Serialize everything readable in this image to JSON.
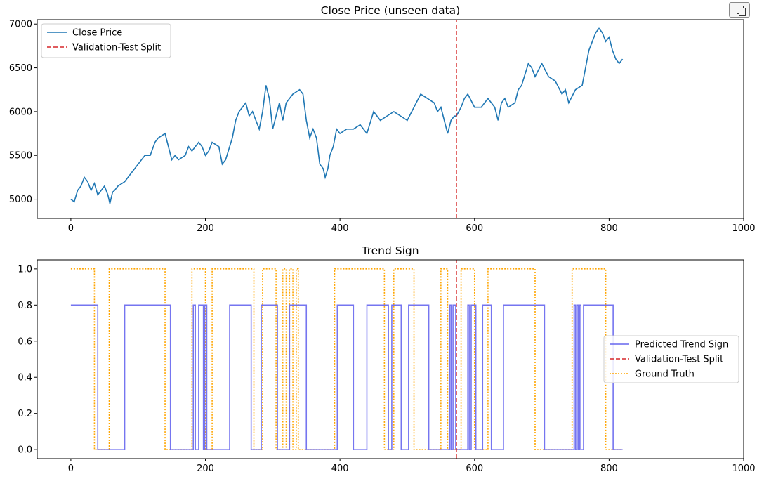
{
  "toolbar": {
    "copy_icon": "copy-icon"
  },
  "colors": {
    "close_price": "#1f77b4",
    "split": "#d62728",
    "predicted": "#6666ee",
    "ground_truth": "#ffa500",
    "axes": "#000000"
  },
  "chart_data": [
    {
      "type": "line",
      "title": "Close Price (unseen data)",
      "xlabel": "",
      "ylabel": "",
      "xlim": [
        -50,
        1000
      ],
      "ylim": [
        4780,
        7050
      ],
      "xticks": [
        0,
        200,
        400,
        600,
        800,
        1000
      ],
      "xtick_labels": [
        "0",
        "200",
        "400",
        "600",
        "800",
        "1000"
      ],
      "yticks": [
        5000,
        5500,
        6000,
        6500,
        7000
      ],
      "ytick_labels": [
        "5000",
        "5500",
        "6000",
        "6500",
        "7000"
      ],
      "grid": false,
      "legend_position": "top-left",
      "split_x": 573,
      "legend": [
        "Close Price",
        "Validation-Test Split"
      ],
      "series": [
        {
          "name": "Close Price",
          "style": "solid",
          "x": [
            0,
            5,
            10,
            15,
            20,
            25,
            30,
            35,
            40,
            45,
            50,
            55,
            58,
            62,
            65,
            70,
            80,
            90,
            100,
            110,
            118,
            125,
            130,
            140,
            145,
            150,
            155,
            160,
            170,
            175,
            180,
            190,
            195,
            200,
            205,
            210,
            220,
            225,
            230,
            240,
            245,
            250,
            260,
            265,
            270,
            280,
            285,
            290,
            295,
            300,
            305,
            310,
            315,
            320,
            330,
            340,
            345,
            350,
            355,
            360,
            365,
            370,
            375,
            378,
            382,
            385,
            390,
            395,
            400,
            410,
            420,
            430,
            440,
            450,
            460,
            470,
            480,
            490,
            500,
            510,
            520,
            530,
            540,
            545,
            550,
            555,
            560,
            565,
            570,
            573,
            580,
            585,
            590,
            600,
            610,
            620,
            630,
            635,
            640,
            645,
            650,
            660,
            665,
            670,
            680,
            685,
            690,
            700,
            710,
            720,
            730,
            735,
            740,
            750,
            760,
            770,
            775,
            780,
            785,
            790,
            795,
            800,
            805,
            810,
            815,
            820
          ],
          "y": [
            5000,
            4970,
            5100,
            5150,
            5250,
            5200,
            5100,
            5180,
            5050,
            5100,
            5150,
            5050,
            4950,
            5080,
            5100,
            5150,
            5200,
            5300,
            5400,
            5500,
            5500,
            5650,
            5700,
            5750,
            5600,
            5450,
            5500,
            5450,
            5500,
            5600,
            5550,
            5650,
            5600,
            5500,
            5550,
            5650,
            5600,
            5400,
            5450,
            5700,
            5900,
            6000,
            6100,
            5950,
            6000,
            5800,
            6000,
            6300,
            6150,
            5800,
            5950,
            6100,
            5900,
            6100,
            6200,
            6250,
            6200,
            5900,
            5700,
            5800,
            5700,
            5400,
            5350,
            5250,
            5350,
            5500,
            5600,
            5800,
            5750,
            5800,
            5800,
            5850,
            5750,
            6000,
            5900,
            5950,
            6000,
            5950,
            5900,
            6050,
            6200,
            6150,
            6100,
            6000,
            6050,
            5900,
            5750,
            5900,
            5950,
            5950,
            6050,
            6150,
            6200,
            6050,
            6050,
            6150,
            6050,
            5900,
            6100,
            6150,
            6050,
            6100,
            6250,
            6300,
            6550,
            6500,
            6400,
            6550,
            6400,
            6350,
            6200,
            6250,
            6100,
            6250,
            6300,
            6700,
            6800,
            6900,
            6950,
            6900,
            6800,
            6850,
            6700,
            6600,
            6550,
            6600
          ]
        },
        {
          "name": "Validation-Test Split",
          "style": "dashed",
          "x": [
            573,
            573
          ],
          "y": [
            4780,
            7050
          ]
        }
      ]
    },
    {
      "type": "line",
      "title": "Trend Sign",
      "xlabel": "",
      "ylabel": "",
      "xlim": [
        -50,
        1000
      ],
      "ylim": [
        -0.05,
        1.05
      ],
      "xticks": [
        0,
        200,
        400,
        600,
        800,
        1000
      ],
      "xtick_labels": [
        "0",
        "200",
        "400",
        "600",
        "800",
        "1000"
      ],
      "yticks": [
        0.0,
        0.2,
        0.4,
        0.6,
        0.8,
        1.0
      ],
      "ytick_labels": [
        "0.0",
        "0.2",
        "0.4",
        "0.6",
        "0.8",
        "1.0"
      ],
      "grid": false,
      "legend_position": "center-right",
      "split_x": 573,
      "legend": [
        "Predicted Trend Sign",
        "Validation-Test Split",
        "Ground Truth"
      ],
      "series": [
        {
          "name": "Predicted Trend Sign",
          "style": "solid",
          "x_range": [
            0,
            820
          ],
          "high": 0.8,
          "low": 0,
          "high_intervals": [
            [
              0,
              40
            ],
            [
              80,
              148
            ],
            [
              182,
              185
            ],
            [
              190,
              197
            ],
            [
              199,
              202
            ],
            [
              236,
              268
            ],
            [
              283,
              307
            ],
            [
              325,
              350
            ],
            [
              396,
              420
            ],
            [
              440,
              472
            ],
            [
              477,
              491
            ],
            [
              502,
              532
            ],
            [
              563,
              565
            ],
            [
              568,
              572
            ],
            [
              590,
              592
            ],
            [
              595,
              602
            ],
            [
              612,
              625
            ],
            [
              643,
              704
            ],
            [
              748,
              750
            ],
            [
              752,
              754
            ],
            [
              756,
              758
            ],
            [
              762,
              806
            ]
          ]
        },
        {
          "name": "Validation-Test Split",
          "style": "dashed",
          "x": [
            573,
            573
          ],
          "y": [
            -0.05,
            1.05
          ]
        },
        {
          "name": "Ground Truth",
          "style": "dotted",
          "x_range": [
            0,
            820
          ],
          "high": 1.0,
          "low": 0,
          "high_intervals": [
            [
              0,
              35
            ],
            [
              57,
              140
            ],
            [
              180,
              200
            ],
            [
              210,
              272
            ],
            [
              285,
              305
            ],
            [
              315,
              320
            ],
            [
              325,
              330
            ],
            [
              335,
              338
            ],
            [
              392,
              466
            ],
            [
              480,
              510
            ],
            [
              550,
              560
            ],
            [
              580,
              600
            ],
            [
              620,
              690
            ],
            [
              745,
              795
            ]
          ]
        }
      ]
    }
  ]
}
